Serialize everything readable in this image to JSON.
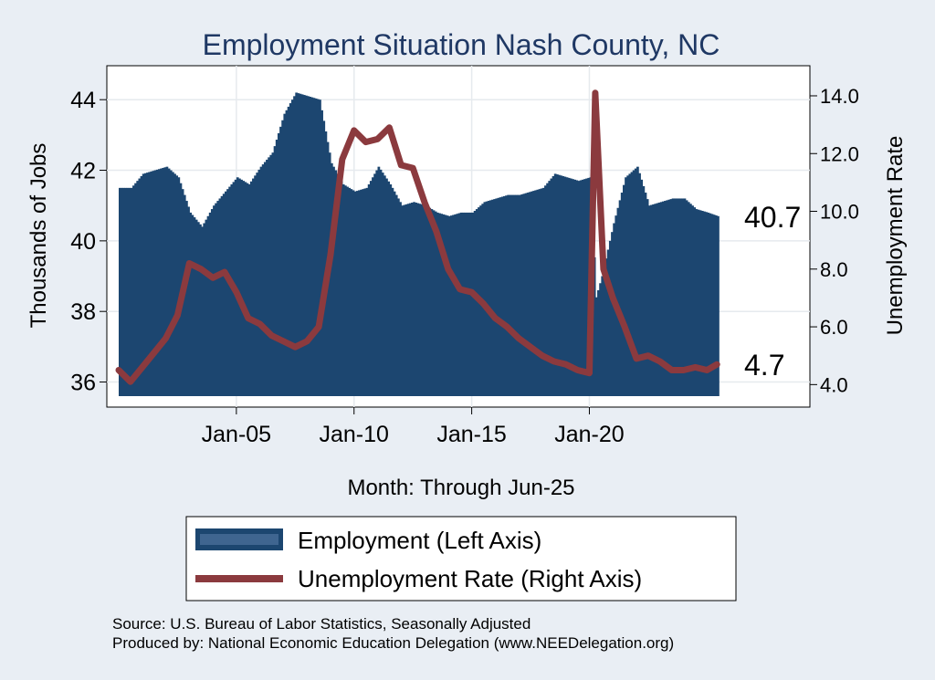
{
  "chart_data": {
    "type": "bar+line",
    "title": "Employment Situation Nash  County, NC",
    "ylabel_left": "Thousands of Jobs",
    "ylabel_right": "Unemployment Rate",
    "xlabel": "Month: Through Jun-25",
    "yticks_left": [
      "36",
      "38",
      "40",
      "42",
      "44"
    ],
    "ylim_left": [
      35.6,
      44.6
    ],
    "yticks_right": [
      "4.0",
      "6.0",
      "8.0",
      "10.0",
      "12.0",
      "14.0"
    ],
    "ylim_right": [
      3.6,
      14.6
    ],
    "xticks": [
      "Jan-05",
      "Jan-10",
      "Jan-15",
      "Jan-20"
    ],
    "xlim": [
      2000.0,
      2026.5
    ],
    "grid": true,
    "legend_position": "bottom",
    "employment_end_label": "40.7",
    "unemployment_end_label": "4.7",
    "series": [
      {
        "name": "Employment (Left Axis)",
        "color": "#1c4670",
        "points": [
          [
            2000.0,
            41.5
          ],
          [
            2000.5,
            41.5
          ],
          [
            2001.0,
            41.9
          ],
          [
            2001.5,
            42.0
          ],
          [
            2002.0,
            42.1
          ],
          [
            2002.5,
            41.8
          ],
          [
            2003.0,
            40.8
          ],
          [
            2003.5,
            40.4
          ],
          [
            2004.0,
            41.0
          ],
          [
            2004.5,
            41.4
          ],
          [
            2005.0,
            41.8
          ],
          [
            2005.5,
            41.6
          ],
          [
            2006.0,
            42.1
          ],
          [
            2006.5,
            42.5
          ],
          [
            2007.0,
            43.6
          ],
          [
            2007.5,
            44.2
          ],
          [
            2008.0,
            44.1
          ],
          [
            2008.5,
            44.0
          ],
          [
            2009.0,
            42.2
          ],
          [
            2009.5,
            41.6
          ],
          [
            2010.0,
            41.4
          ],
          [
            2010.5,
            41.5
          ],
          [
            2011.0,
            42.1
          ],
          [
            2011.5,
            41.6
          ],
          [
            2012.0,
            41.0
          ],
          [
            2012.5,
            41.1
          ],
          [
            2013.0,
            41.0
          ],
          [
            2013.5,
            40.8
          ],
          [
            2014.0,
            40.7
          ],
          [
            2014.5,
            40.8
          ],
          [
            2015.0,
            40.8
          ],
          [
            2015.5,
            41.1
          ],
          [
            2016.0,
            41.2
          ],
          [
            2016.5,
            41.3
          ],
          [
            2017.0,
            41.3
          ],
          [
            2017.5,
            41.4
          ],
          [
            2018.0,
            41.5
          ],
          [
            2018.5,
            41.9
          ],
          [
            2019.0,
            41.8
          ],
          [
            2019.5,
            41.7
          ],
          [
            2020.0,
            41.8
          ],
          [
            2020.25,
            38.4
          ],
          [
            2020.5,
            39.0
          ],
          [
            2021.0,
            40.5
          ],
          [
            2021.5,
            41.8
          ],
          [
            2022.0,
            42.1
          ],
          [
            2022.5,
            41.0
          ],
          [
            2023.0,
            41.1
          ],
          [
            2023.5,
            41.2
          ],
          [
            2024.0,
            41.2
          ],
          [
            2024.5,
            40.9
          ],
          [
            2025.0,
            40.8
          ],
          [
            2025.42,
            40.7
          ]
        ]
      },
      {
        "name": "Unemployment Rate (Right Axis)",
        "color": "#8b3a3e",
        "points": [
          [
            2000.0,
            4.5
          ],
          [
            2000.5,
            4.1
          ],
          [
            2001.0,
            4.6
          ],
          [
            2001.5,
            5.1
          ],
          [
            2002.0,
            5.6
          ],
          [
            2002.5,
            6.4
          ],
          [
            2003.0,
            8.2
          ],
          [
            2003.5,
            8.0
          ],
          [
            2004.0,
            7.7
          ],
          [
            2004.5,
            7.9
          ],
          [
            2005.0,
            7.2
          ],
          [
            2005.5,
            6.3
          ],
          [
            2006.0,
            6.1
          ],
          [
            2006.5,
            5.7
          ],
          [
            2007.0,
            5.5
          ],
          [
            2007.5,
            5.3
          ],
          [
            2008.0,
            5.5
          ],
          [
            2008.5,
            6.0
          ],
          [
            2009.0,
            8.5
          ],
          [
            2009.5,
            11.8
          ],
          [
            2010.0,
            12.8
          ],
          [
            2010.5,
            12.4
          ],
          [
            2011.0,
            12.5
          ],
          [
            2011.5,
            12.9
          ],
          [
            2012.0,
            11.6
          ],
          [
            2012.5,
            11.5
          ],
          [
            2013.0,
            10.3
          ],
          [
            2013.5,
            9.3
          ],
          [
            2014.0,
            8.0
          ],
          [
            2014.5,
            7.3
          ],
          [
            2015.0,
            7.2
          ],
          [
            2015.5,
            6.8
          ],
          [
            2016.0,
            6.3
          ],
          [
            2016.5,
            6.0
          ],
          [
            2017.0,
            5.6
          ],
          [
            2017.5,
            5.3
          ],
          [
            2018.0,
            5.0
          ],
          [
            2018.5,
            4.8
          ],
          [
            2019.0,
            4.7
          ],
          [
            2019.5,
            4.5
          ],
          [
            2020.0,
            4.4
          ],
          [
            2020.25,
            14.1
          ],
          [
            2020.6,
            8.0
          ],
          [
            2021.0,
            7.0
          ],
          [
            2021.5,
            6.0
          ],
          [
            2022.0,
            4.9
          ],
          [
            2022.5,
            5.0
          ],
          [
            2023.0,
            4.8
          ],
          [
            2023.5,
            4.5
          ],
          [
            2024.0,
            4.5
          ],
          [
            2024.5,
            4.6
          ],
          [
            2025.0,
            4.5
          ],
          [
            2025.42,
            4.7
          ]
        ]
      }
    ]
  },
  "legend": {
    "employment_label": "Employment (Left Axis)",
    "unemployment_label": "Unemployment Rate (Right Axis)"
  },
  "source_line": "Source: U.S. Bureau of Labor Statistics, Seasonally Adjusted",
  "produced_line": "Produced by: National Economic Education Delegation (www.NEEDelegation.org)"
}
